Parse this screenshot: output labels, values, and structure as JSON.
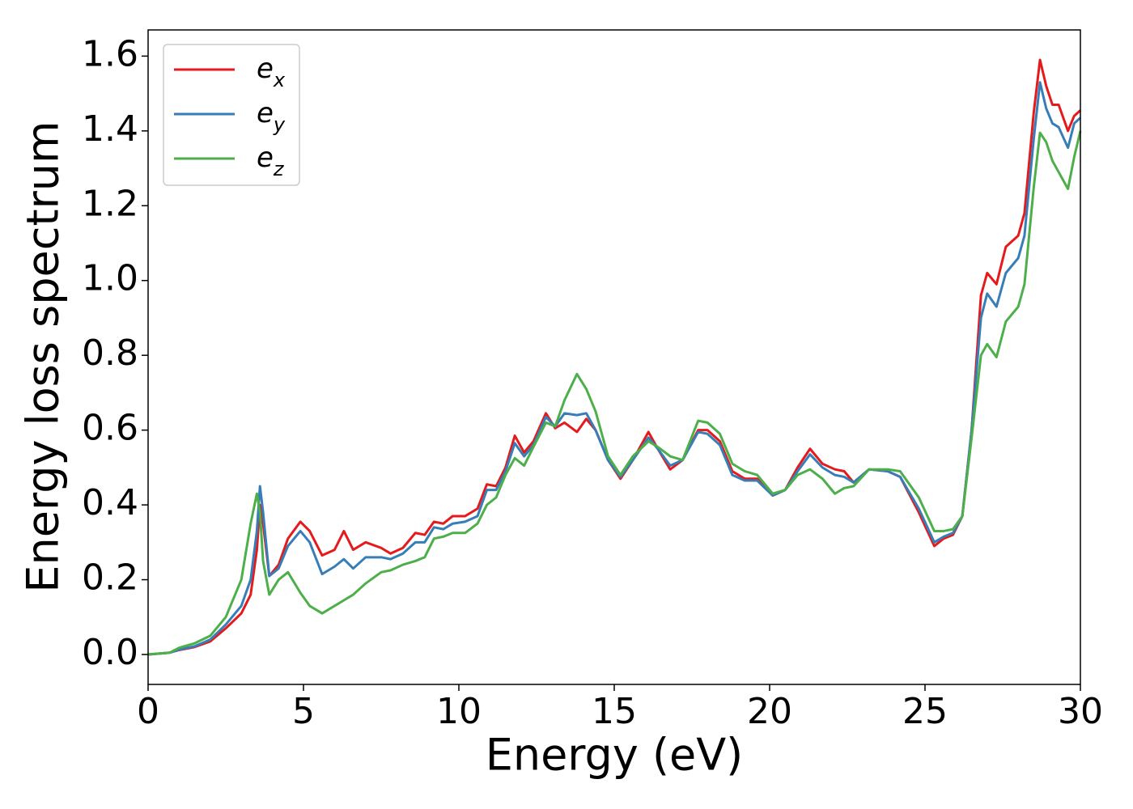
{
  "chart_data": {
    "type": "line",
    "xlabel": "Energy (eV)",
    "ylabel": "Energy loss spectrum",
    "xlim": [
      0,
      30
    ],
    "ylim": [
      -0.08,
      1.67
    ],
    "xticks": [
      0,
      5,
      10,
      15,
      20,
      25,
      30
    ],
    "yticks": [
      {
        "value": 0,
        "label": "0.0"
      },
      0.2,
      0.4,
      0.6,
      0.8,
      {
        "value": 1,
        "label": "1.0"
      },
      1.2,
      1.4,
      1.6
    ],
    "legend": "upper left",
    "x": [
      0,
      0.7,
      1.0,
      1.5,
      2.0,
      2.5,
      3.0,
      3.3,
      3.5,
      3.6,
      3.7,
      3.9,
      4.2,
      4.5,
      4.9,
      5.2,
      5.6,
      6.0,
      6.3,
      6.6,
      7.0,
      7.5,
      7.8,
      8.2,
      8.6,
      8.9,
      9.2,
      9.5,
      9.8,
      10.2,
      10.6,
      10.9,
      11.2,
      11.5,
      11.8,
      12.1,
      12.4,
      12.8,
      13.1,
      13.4,
      13.8,
      14.1,
      14.4,
      14.8,
      15.2,
      15.6,
      16.1,
      16.4,
      16.8,
      17.2,
      17.7,
      18.0,
      18.4,
      18.8,
      19.2,
      19.6,
      20.1,
      20.5,
      20.9,
      21.3,
      21.7,
      22.1,
      22.4,
      22.7,
      23.2,
      23.8,
      24.2,
      24.8,
      25.3,
      25.6,
      25.9,
      26.2,
      26.5,
      26.8,
      27.0,
      27.3,
      27.6,
      28.0,
      28.2,
      28.5,
      28.7,
      28.9,
      29.1,
      29.3,
      29.6,
      29.8,
      30
    ],
    "series": [
      {
        "name": "e_x",
        "color": "#e41a1c",
        "values": [
          0,
          0.005,
          0.012,
          0.02,
          0.035,
          0.07,
          0.11,
          0.16,
          0.28,
          0.4,
          0.35,
          0.21,
          0.24,
          0.31,
          0.355,
          0.33,
          0.265,
          0.28,
          0.33,
          0.28,
          0.3,
          0.285,
          0.27,
          0.285,
          0.325,
          0.32,
          0.355,
          0.35,
          0.37,
          0.37,
          0.39,
          0.455,
          0.45,
          0.5,
          0.585,
          0.54,
          0.57,
          0.645,
          0.605,
          0.62,
          0.595,
          0.63,
          0.6,
          0.52,
          0.47,
          0.52,
          0.595,
          0.55,
          0.495,
          0.52,
          0.6,
          0.6,
          0.57,
          0.49,
          0.47,
          0.47,
          0.425,
          0.44,
          0.5,
          0.55,
          0.51,
          0.495,
          0.49,
          0.46,
          0.495,
          0.49,
          0.475,
          0.38,
          0.29,
          0.31,
          0.32,
          0.37,
          0.6,
          0.96,
          1.02,
          0.99,
          1.09,
          1.12,
          1.18,
          1.45,
          1.59,
          1.52,
          1.47,
          1.47,
          1.4,
          1.44,
          1.455
        ]
      },
      {
        "name": "e_y",
        "color": "#377eb8",
        "values": [
          0,
          0.005,
          0.013,
          0.022,
          0.04,
          0.08,
          0.13,
          0.2,
          0.33,
          0.45,
          0.38,
          0.21,
          0.23,
          0.29,
          0.33,
          0.3,
          0.215,
          0.235,
          0.255,
          0.23,
          0.26,
          0.26,
          0.255,
          0.27,
          0.3,
          0.3,
          0.34,
          0.335,
          0.35,
          0.355,
          0.37,
          0.44,
          0.44,
          0.49,
          0.565,
          0.53,
          0.56,
          0.635,
          0.61,
          0.645,
          0.64,
          0.645,
          0.6,
          0.52,
          0.475,
          0.52,
          0.58,
          0.55,
          0.505,
          0.52,
          0.595,
          0.59,
          0.56,
          0.48,
          0.465,
          0.465,
          0.425,
          0.44,
          0.49,
          0.535,
          0.5,
          0.48,
          0.475,
          0.46,
          0.495,
          0.49,
          0.475,
          0.39,
          0.3,
          0.315,
          0.325,
          0.37,
          0.6,
          0.9,
          0.965,
          0.93,
          1.02,
          1.06,
          1.12,
          1.38,
          1.53,
          1.46,
          1.42,
          1.41,
          1.355,
          1.42,
          1.435
        ]
      },
      {
        "name": "e_z",
        "color": "#4daf4a",
        "values": [
          0,
          0.005,
          0.018,
          0.03,
          0.05,
          0.1,
          0.2,
          0.35,
          0.43,
          0.38,
          0.25,
          0.16,
          0.2,
          0.22,
          0.165,
          0.13,
          0.11,
          0.13,
          0.145,
          0.16,
          0.19,
          0.22,
          0.225,
          0.24,
          0.25,
          0.26,
          0.31,
          0.315,
          0.325,
          0.325,
          0.35,
          0.4,
          0.42,
          0.48,
          0.525,
          0.505,
          0.555,
          0.62,
          0.61,
          0.68,
          0.75,
          0.71,
          0.65,
          0.53,
          0.48,
          0.53,
          0.57,
          0.555,
          0.53,
          0.52,
          0.625,
          0.62,
          0.59,
          0.51,
          0.49,
          0.48,
          0.43,
          0.44,
          0.48,
          0.495,
          0.47,
          0.43,
          0.445,
          0.45,
          0.495,
          0.495,
          0.49,
          0.42,
          0.33,
          0.33,
          0.335,
          0.37,
          0.58,
          0.8,
          0.83,
          0.795,
          0.89,
          0.93,
          0.99,
          1.25,
          1.395,
          1.37,
          1.32,
          1.29,
          1.245,
          1.33,
          1.4
        ]
      }
    ]
  }
}
